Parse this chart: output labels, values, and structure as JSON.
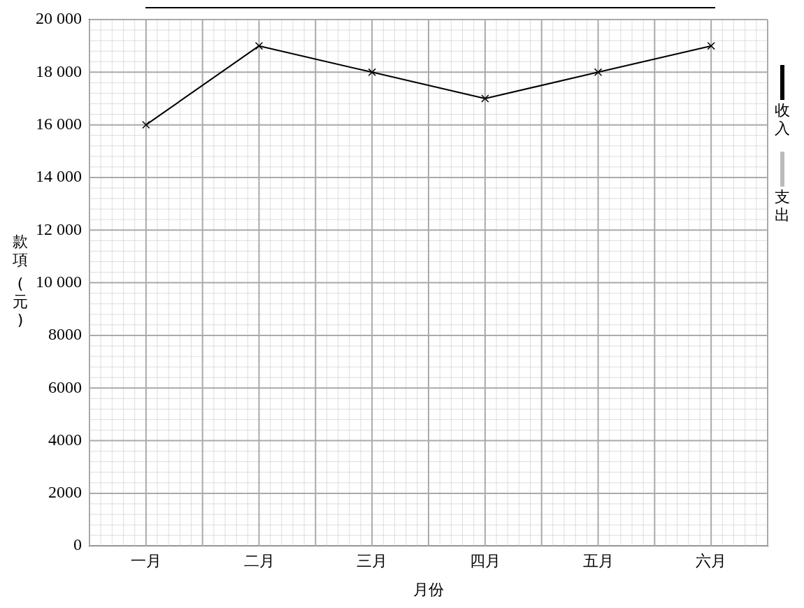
{
  "chart_data": {
    "type": "line",
    "xlabel": "月份",
    "ylabel": "款項 (元)",
    "categories": [
      "一月",
      "二月",
      "三月",
      "四月",
      "五月",
      "六月"
    ],
    "series": [
      {
        "name": "收入",
        "color": "#000000",
        "values": [
          16000,
          19000,
          18000,
          17000,
          18000,
          19000
        ]
      },
      {
        "name": "支出",
        "color": "#bbbbbb",
        "values": [
          null,
          null,
          null,
          null,
          null,
          null
        ]
      }
    ],
    "ylim": [
      0,
      20000
    ],
    "yticks": [
      0,
      2000,
      4000,
      6000,
      8000,
      {
        "value": 10000,
        "label": "10 000"
      },
      {
        "value": 12000,
        "label": "12 000"
      },
      {
        "value": 14000,
        "label": "14 000"
      },
      {
        "value": 16000,
        "label": "16 000"
      },
      {
        "value": 18000,
        "label": "18 000"
      },
      {
        "value": 20000,
        "label": "20 000"
      }
    ],
    "grid": true,
    "legend": "right",
    "marker": "cross",
    "line_style": "solid"
  }
}
